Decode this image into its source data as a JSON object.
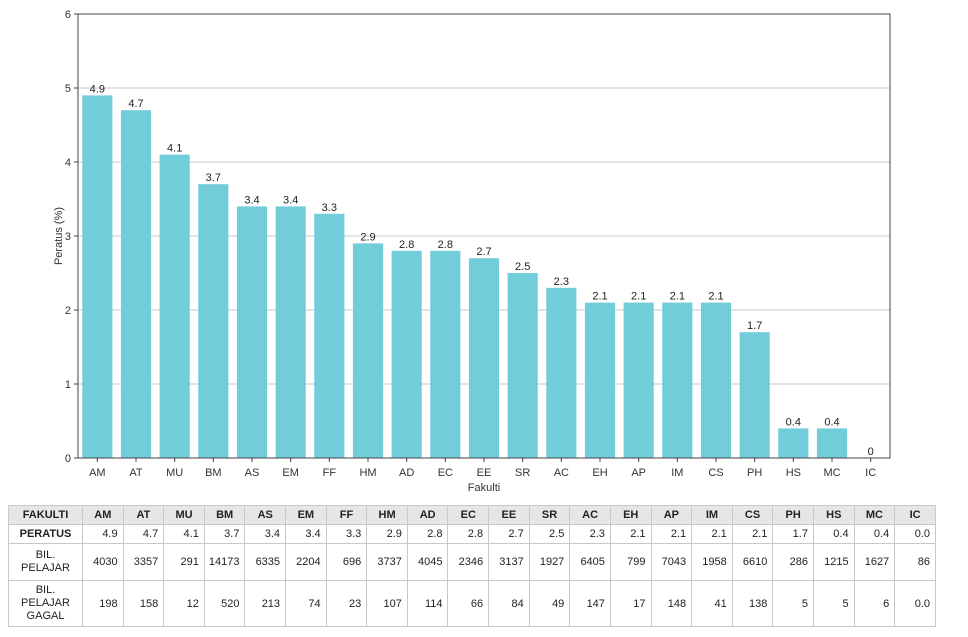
{
  "chart_data": {
    "type": "bar",
    "title": "",
    "xlabel": "Fakulti",
    "ylabel": "Peratus (%)",
    "ylim": [
      0,
      6
    ],
    "yticks": [
      0,
      1,
      2,
      3,
      4,
      5,
      6
    ],
    "grid": true,
    "bar_color": "#72CDDB",
    "categories": [
      "AM",
      "AT",
      "MU",
      "BM",
      "AS",
      "EM",
      "FF",
      "HM",
      "AD",
      "EC",
      "EE",
      "SR",
      "AC",
      "EH",
      "AP",
      "IM",
      "CS",
      "PH",
      "HS",
      "MC",
      "IC"
    ],
    "values": [
      4.9,
      4.7,
      4.1,
      3.7,
      3.4,
      3.4,
      3.3,
      2.9,
      2.8,
      2.8,
      2.7,
      2.5,
      2.3,
      2.1,
      2.1,
      2.1,
      2.1,
      1.7,
      0.4,
      0.4,
      0
    ],
    "value_labels": [
      "4.9",
      "4.7",
      "4.1",
      "3.7",
      "3.4",
      "3.4",
      "3.3",
      "2.9",
      "2.8",
      "2.8",
      "2.7",
      "2.5",
      "2.3",
      "2.1",
      "2.1",
      "2.1",
      "2.1",
      "1.7",
      "0.4",
      "0.4",
      "0"
    ]
  },
  "table": {
    "header_label": "FAKULTI",
    "rows": [
      {
        "label": "PERATUS",
        "values": [
          "4.9",
          "4.7",
          "4.1",
          "3.7",
          "3.4",
          "3.4",
          "3.3",
          "2.9",
          "2.8",
          "2.8",
          "2.7",
          "2.5",
          "2.3",
          "2.1",
          "2.1",
          "2.1",
          "2.1",
          "1.7",
          "0.4",
          "0.4",
          "0.0"
        ]
      },
      {
        "label": "BIL. PELAJAR",
        "values": [
          "4030",
          "3357",
          "291",
          "14173",
          "6335",
          "2204",
          "696",
          "3737",
          "4045",
          "2346",
          "3137",
          "1927",
          "6405",
          "799",
          "7043",
          "1958",
          "6610",
          "286",
          "1215",
          "1627",
          "86"
        ]
      },
      {
        "label": "BIL. PELAJAR GAGAL",
        "values": [
          "198",
          "158",
          "12",
          "520",
          "213",
          "74",
          "23",
          "107",
          "114",
          "66",
          "84",
          "49",
          "147",
          "17",
          "148",
          "41",
          "138",
          "5",
          "5",
          "6",
          "0.0"
        ]
      }
    ]
  }
}
